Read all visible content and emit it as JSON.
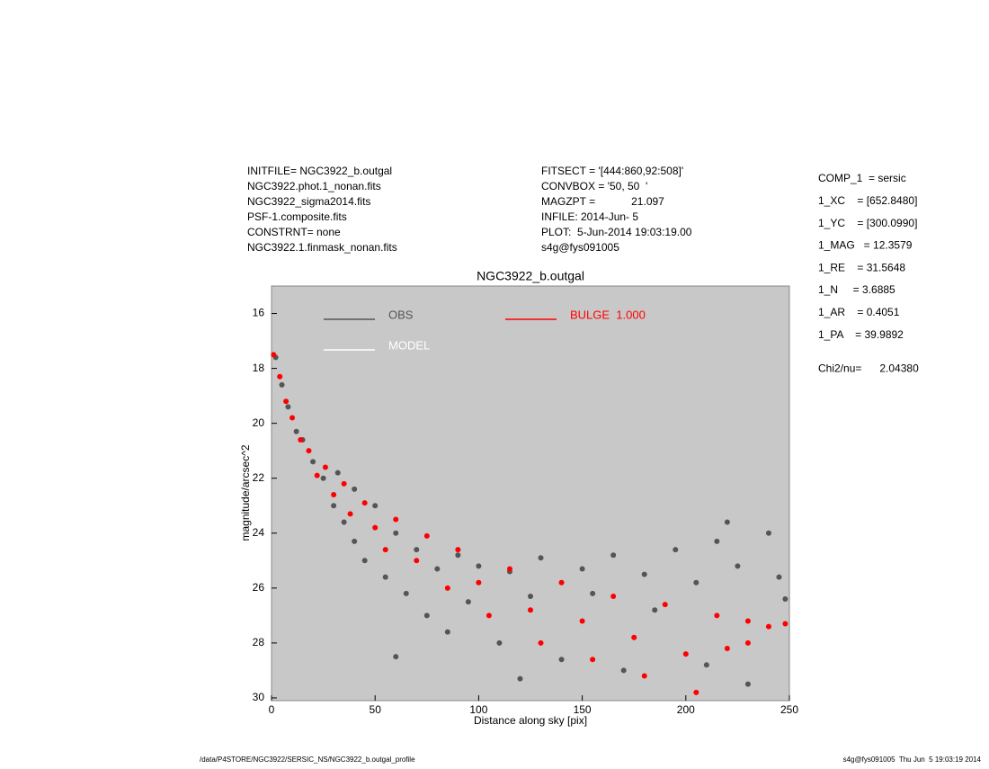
{
  "header": {
    "left": [
      "INITFILE= NGC3922_b.outgal",
      "NGC3922.phot.1_nonan.fits",
      "NGC3922_sigma2014.fits",
      "PSF-1.composite.fits",
      "CONSTRNT= none",
      "NGC3922.1.finmask_nonan.fits"
    ],
    "middle": [
      "FITSECT = '[444:860,92:508]'",
      "CONVBOX = '50, 50  '",
      "MAGZPT =            21.097",
      "INFILE: 2014-Jun- 5",
      "PLOT:  5-Jun-2014 19:03:19.00",
      "s4g@fys091005"
    ],
    "params": [
      "COMP_1  = sersic",
      "1_XC    = [652.8480]",
      "1_YC    = [300.0990]",
      "1_MAG   = 12.3579",
      "1_RE    = 31.5648",
      "1_N     = 3.6885",
      "1_AR    = 0.4051",
      "1_PA    = 39.9892",
      "Chi2/nu=      2.04380"
    ]
  },
  "footer": {
    "left": "/data/P4STORE/NGC3922/SERSIC_NS/NGC3922_b.outgal_profile",
    "right": "s4g@fys091005  Thu Jun  5 19:03:19 2014"
  },
  "chart_data": {
    "type": "scatter",
    "title": "NGC3922_b.outgal",
    "xlabel": "Distance along sky [pix]",
    "ylabel": "magnitude/arcsec^2",
    "xlim": [
      0,
      250
    ],
    "xticks": [
      0,
      50,
      100,
      150,
      200,
      250
    ],
    "ylim": [
      30.1,
      15
    ],
    "yticks": [
      16,
      18,
      20,
      22,
      24,
      26,
      28,
      30
    ],
    "background": "#c8c8c8",
    "series": [
      {
        "name": "OBS",
        "color": "#555555",
        "x": [
          2,
          5,
          8,
          12,
          15,
          20,
          25,
          30,
          32,
          35,
          40,
          40,
          45,
          50,
          55,
          60,
          65,
          70,
          75,
          80,
          85,
          90,
          95,
          100,
          110,
          115,
          125,
          130,
          140,
          150,
          155,
          165,
          170,
          180,
          185,
          195,
          205,
          210,
          215,
          225,
          230,
          240,
          245,
          248,
          60,
          120,
          220
        ],
        "y": [
          17.6,
          18.6,
          19.4,
          20.3,
          20.6,
          21.4,
          22.0,
          23.0,
          21.8,
          23.6,
          24.3,
          22.4,
          25.0,
          23.0,
          25.6,
          24.0,
          26.2,
          24.6,
          27.0,
          25.3,
          27.6,
          24.8,
          26.5,
          25.2,
          28.0,
          25.4,
          26.3,
          24.9,
          28.6,
          25.3,
          26.2,
          24.8,
          29.0,
          25.5,
          26.8,
          24.6,
          25.8,
          28.8,
          24.3,
          25.2,
          29.5,
          24.0,
          25.6,
          26.4,
          28.5,
          29.3,
          23.6
        ]
      },
      {
        "name": "MODEL",
        "color": "#ffffff",
        "x": [],
        "y": []
      },
      {
        "name": "BULGE  1.000",
        "color": "#ff0000",
        "x": [
          1,
          4,
          7,
          10,
          14,
          18,
          22,
          26,
          30,
          35,
          38,
          45,
          50,
          55,
          60,
          70,
          75,
          85,
          90,
          100,
          105,
          115,
          125,
          130,
          140,
          150,
          155,
          165,
          175,
          180,
          190,
          200,
          205,
          215,
          220,
          230,
          240,
          248,
          230
        ],
        "y": [
          17.5,
          18.3,
          19.2,
          19.8,
          20.6,
          21.0,
          21.9,
          21.6,
          22.6,
          22.2,
          23.3,
          22.9,
          23.8,
          24.6,
          23.5,
          25.0,
          24.1,
          26.0,
          24.6,
          25.8,
          27.0,
          25.3,
          26.8,
          28.0,
          25.8,
          27.2,
          28.6,
          26.3,
          27.8,
          29.2,
          26.6,
          28.4,
          29.8,
          27.0,
          28.2,
          27.2,
          27.4,
          27.3,
          28.0
        ]
      }
    ]
  }
}
